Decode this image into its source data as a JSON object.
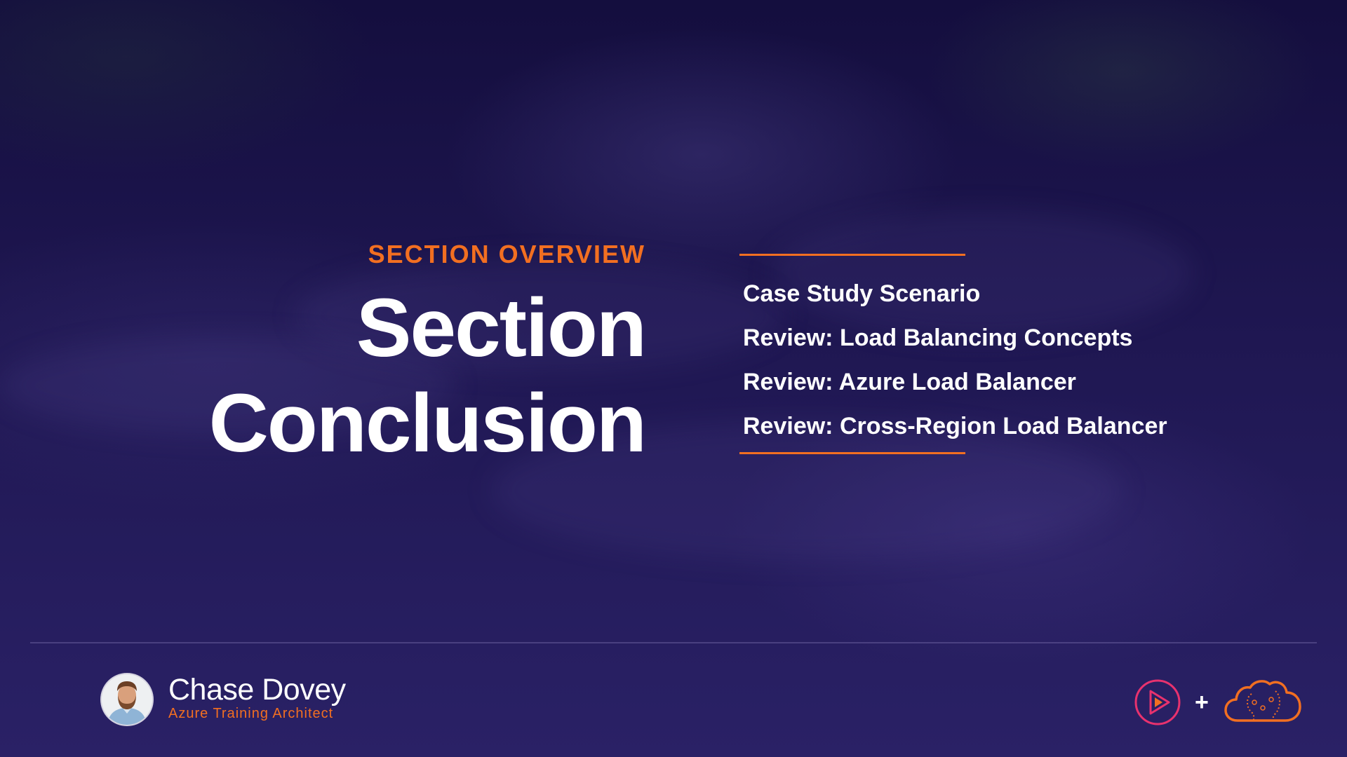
{
  "slide": {
    "eyebrow": "SECTION OVERVIEW",
    "title_line1": "Section",
    "title_line2": "Conclusion",
    "topics": [
      "Case Study Scenario",
      "Review: Load Balancing Concepts",
      "Review: Azure Load Balancer",
      "Review: Cross-Region Load Balancer"
    ]
  },
  "presenter": {
    "name": "Chase Dovey",
    "role": "Azure Training Architect"
  },
  "branding": {
    "plus_symbol": "+",
    "play_logo_icon": "play-logo-icon",
    "cloud_logo_icon": "cloud-logo-icon"
  },
  "colors": {
    "accent": "#f26f21",
    "background": "#1e1650",
    "text": "#ffffff",
    "play_logo": "#e8326e"
  }
}
